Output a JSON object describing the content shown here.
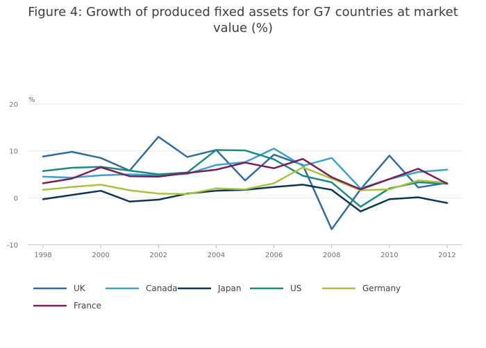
{
  "chart_data": {
    "type": "line",
    "title": "Figure 4: Growth of produced fixed assets for G7 countries at market value (%)",
    "ylabel": "%",
    "xlabel": "",
    "x": [
      1998,
      1999,
      2000,
      2001,
      2002,
      2003,
      2004,
      2005,
      2006,
      2007,
      2008,
      2009,
      2010,
      2011,
      2012
    ],
    "x_ticks": [
      "1998",
      "2000",
      "2002",
      "2004",
      "2006",
      "2008",
      "2010",
      "2012"
    ],
    "y_ticks": [
      "20",
      "10",
      "0",
      "-10"
    ],
    "ylim": [
      -10,
      20
    ],
    "grid": true,
    "legend_position": "bottom",
    "series": [
      {
        "name": "UK",
        "color": "#2e6b9e",
        "values": [
          8.8,
          9.8,
          8.5,
          5.8,
          13.0,
          8.7,
          10.2,
          3.7,
          9.2,
          7.0,
          -6.7,
          1.8,
          9.0,
          2.2,
          3.2
        ]
      },
      {
        "name": "Canada",
        "color": "#3aa0cf",
        "values": [
          4.5,
          4.3,
          4.8,
          5.0,
          4.8,
          5.1,
          7.0,
          7.6,
          10.5,
          6.8,
          8.5,
          2.0,
          4.0,
          5.5,
          6.0
        ]
      },
      {
        "name": "Japan",
        "color": "#0b3552",
        "values": [
          -0.3,
          0.6,
          1.5,
          -0.8,
          -0.4,
          0.9,
          1.5,
          1.7,
          2.3,
          2.8,
          1.7,
          -2.9,
          -0.3,
          0.1,
          -1.1
        ]
      },
      {
        "name": "US",
        "color": "#1a8a7f",
        "values": [
          5.7,
          6.4,
          6.6,
          5.8,
          5.0,
          5.4,
          10.2,
          10.1,
          8.2,
          4.7,
          3.3,
          -1.9,
          2.0,
          3.3,
          3.0
        ]
      },
      {
        "name": "Germany",
        "color": "#a8c240",
        "values": [
          1.7,
          2.3,
          2.8,
          1.6,
          0.9,
          0.8,
          2.0,
          1.8,
          3.1,
          6.5,
          4.1,
          1.6,
          1.8,
          3.7,
          3.2
        ]
      },
      {
        "name": "France",
        "color": "#7a1c5a",
        "values": [
          3.1,
          4.1,
          6.5,
          4.6,
          4.5,
          5.3,
          6.0,
          7.5,
          6.3,
          8.3,
          4.4,
          1.8,
          4.0,
          6.2,
          3.0
        ]
      }
    ]
  }
}
